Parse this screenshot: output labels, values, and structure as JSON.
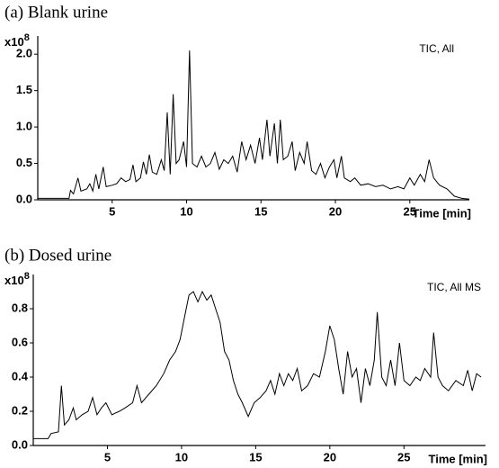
{
  "chart_data": [
    {
      "type": "line",
      "title": "(a) Blank urine",
      "annotation": "TIC, All",
      "x_label": "Time [min]",
      "y_unit": {
        "base": "x10",
        "exponent": "8"
      },
      "color": "#000000",
      "x": [
        0,
        1.5,
        2.1,
        2.2,
        2.4,
        2.7,
        2.9,
        3.3,
        3.5,
        3.7,
        3.9,
        4.1,
        4.4,
        4.6,
        5.0,
        5.3,
        5.6,
        5.9,
        6.2,
        6.4,
        6.6,
        6.9,
        7.1,
        7.3,
        7.5,
        7.7,
        8.0,
        8.3,
        8.5,
        8.7,
        8.9,
        9.1,
        9.3,
        9.5,
        9.8,
        10.0,
        10.2,
        10.4,
        10.7,
        11.0,
        11.3,
        11.6,
        11.9,
        12.2,
        12.5,
        12.8,
        13.1,
        13.4,
        13.7,
        14.0,
        14.3,
        14.6,
        14.9,
        15.1,
        15.4,
        15.6,
        15.9,
        16.1,
        16.3,
        16.5,
        16.8,
        17.1,
        17.3,
        17.6,
        17.9,
        18.1,
        18.4,
        18.7,
        19.0,
        19.3,
        19.6,
        19.9,
        20.1,
        20.4,
        20.6,
        21.0,
        21.3,
        21.7,
        22.2,
        22.7,
        23.2,
        23.7,
        24.2,
        24.6,
        25.0,
        25.3,
        25.7,
        26.0,
        26.3,
        26.6,
        27.0,
        27.5,
        28.0,
        28.5,
        29.0
      ],
      "values": [
        0.02,
        0.02,
        0.02,
        0.13,
        0.08,
        0.3,
        0.12,
        0.15,
        0.22,
        0.12,
        0.35,
        0.15,
        0.45,
        0.18,
        0.2,
        0.22,
        0.3,
        0.25,
        0.28,
        0.48,
        0.25,
        0.3,
        0.52,
        0.35,
        0.62,
        0.38,
        0.35,
        0.55,
        0.4,
        1.2,
        0.35,
        1.45,
        0.5,
        0.55,
        0.8,
        0.45,
        2.05,
        0.5,
        0.45,
        0.6,
        0.45,
        0.5,
        0.65,
        0.42,
        0.55,
        0.5,
        0.6,
        0.38,
        0.8,
        0.55,
        0.75,
        0.5,
        0.85,
        0.55,
        1.1,
        0.6,
        1.05,
        0.5,
        1.1,
        0.55,
        0.6,
        0.8,
        0.4,
        0.65,
        0.5,
        0.8,
        0.4,
        0.35,
        0.5,
        0.3,
        0.45,
        0.55,
        0.3,
        0.6,
        0.3,
        0.25,
        0.3,
        0.2,
        0.22,
        0.18,
        0.2,
        0.15,
        0.18,
        0.15,
        0.3,
        0.2,
        0.35,
        0.25,
        0.55,
        0.3,
        0.2,
        0.15,
        0.05,
        0.02,
        0.01
      ],
      "xlim": [
        0,
        29
      ],
      "xticks": [
        5,
        10,
        15,
        20,
        25
      ],
      "ylim": [
        0,
        2.25
      ],
      "yticks": [
        {
          "value": 0,
          "label": "0.0"
        },
        0.5,
        {
          "value": 1,
          "label": "1.0"
        },
        1.5,
        {
          "value": 2,
          "label": "2.0"
        }
      ]
    },
    {
      "type": "line",
      "title": "(b) Dosed urine",
      "annotation": "TIC, All MS",
      "x_label": "Time [min]",
      "y_unit": {
        "base": "x10",
        "exponent": "8"
      },
      "color": "#000000",
      "x": [
        0,
        1.0,
        1.2,
        1.7,
        1.9,
        2.1,
        2.4,
        2.7,
        2.9,
        3.3,
        3.7,
        4.0,
        4.3,
        4.6,
        4.9,
        5.3,
        5.8,
        6.2,
        6.7,
        7.0,
        7.3,
        7.8,
        8.3,
        8.8,
        9.2,
        9.6,
        9.9,
        10.2,
        10.5,
        10.8,
        11.1,
        11.4,
        11.7,
        12.0,
        12.3,
        12.6,
        12.9,
        13.2,
        13.5,
        13.8,
        14.1,
        14.5,
        14.9,
        15.3,
        15.7,
        16.0,
        16.3,
        16.6,
        16.9,
        17.2,
        17.5,
        17.8,
        18.1,
        18.5,
        18.9,
        19.3,
        19.7,
        20.0,
        20.3,
        20.6,
        20.9,
        21.2,
        21.5,
        21.8,
        22.1,
        22.4,
        22.7,
        23.0,
        23.2,
        23.5,
        23.8,
        24.1,
        24.4,
        24.7,
        25.0,
        25.4,
        25.8,
        26.1,
        26.4,
        26.8,
        27.0,
        27.3,
        27.6,
        28.0,
        28.5,
        29.0,
        29.3,
        29.6,
        29.9,
        30.2
      ],
      "values": [
        0.04,
        0.04,
        0.07,
        0.08,
        0.35,
        0.12,
        0.15,
        0.22,
        0.15,
        0.18,
        0.2,
        0.28,
        0.18,
        0.22,
        0.25,
        0.18,
        0.2,
        0.22,
        0.25,
        0.35,
        0.25,
        0.3,
        0.35,
        0.42,
        0.5,
        0.55,
        0.62,
        0.75,
        0.88,
        0.9,
        0.84,
        0.9,
        0.85,
        0.88,
        0.8,
        0.72,
        0.55,
        0.5,
        0.38,
        0.3,
        0.25,
        0.17,
        0.25,
        0.28,
        0.32,
        0.38,
        0.3,
        0.42,
        0.35,
        0.42,
        0.38,
        0.45,
        0.32,
        0.35,
        0.42,
        0.4,
        0.55,
        0.7,
        0.62,
        0.45,
        0.3,
        0.55,
        0.4,
        0.45,
        0.25,
        0.45,
        0.35,
        0.5,
        0.78,
        0.4,
        0.35,
        0.5,
        0.35,
        0.6,
        0.38,
        0.35,
        0.4,
        0.38,
        0.45,
        0.4,
        0.66,
        0.4,
        0.35,
        0.32,
        0.38,
        0.35,
        0.44,
        0.32,
        0.42,
        0.4
      ],
      "xlim": [
        0,
        30.5
      ],
      "xticks": [
        5,
        10,
        15,
        20,
        25
      ],
      "ylim": [
        0,
        1
      ],
      "yticks": [
        {
          "value": 0,
          "label": "0.0"
        },
        0.2,
        0.4,
        0.6,
        0.8
      ]
    }
  ]
}
